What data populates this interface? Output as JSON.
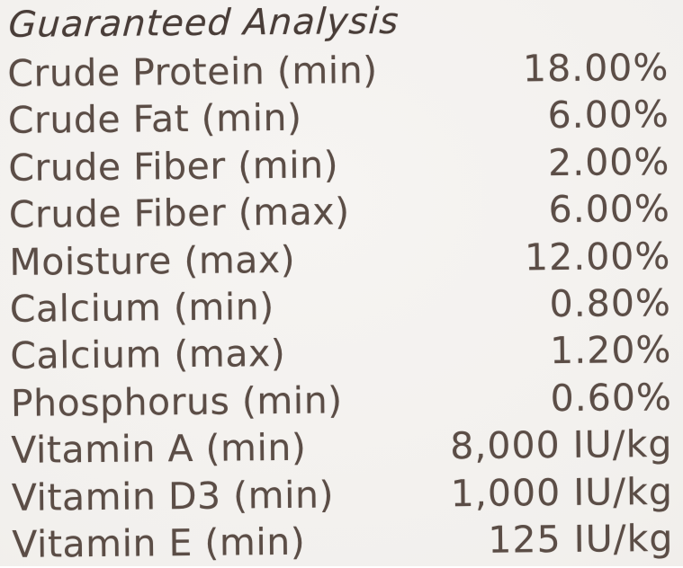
{
  "title": "Guaranteed Analysis",
  "rows": [
    {
      "name": "Crude Protein (min)",
      "value": "18.00%"
    },
    {
      "name": "Crude Fat (min)",
      "value": "6.00%"
    },
    {
      "name": "Crude Fiber (min)",
      "value": "2.00%"
    },
    {
      "name": "Crude Fiber (max)",
      "value": "6.00%"
    },
    {
      "name": "Moisture (max)",
      "value": "12.00%"
    },
    {
      "name": "Calcium (min)",
      "value": "0.80%"
    },
    {
      "name": "Calcium (max)",
      "value": "1.20%"
    },
    {
      "name": "Phosphorus (min)",
      "value": "0.60%"
    },
    {
      "name": "Vitamin A (min)",
      "value": "8,000 IU/kg"
    },
    {
      "name": "Vitamin D3 (min)",
      "value": "1,000 IU/kg"
    },
    {
      "name": "Vitamin E (min)",
      "value": "125 IU/kg"
    }
  ],
  "colors": {
    "background_light": "#f6f4f2",
    "background_mid": "#f2f0ed",
    "background_dark": "#ecc8e41",
    "text": "#5b4d46",
    "title": "#493d38"
  }
}
